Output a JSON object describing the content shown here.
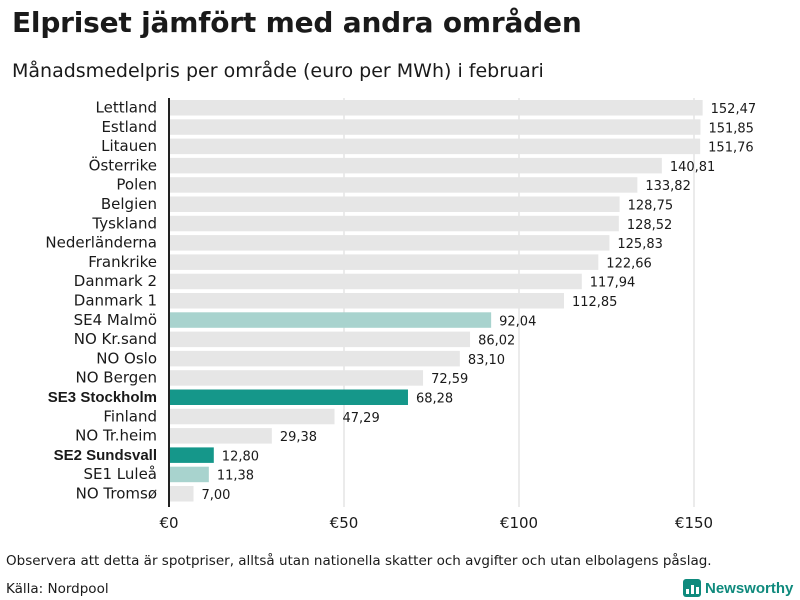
{
  "header": {
    "title": "Elpriset jämfört med andra områden",
    "subtitle": "Månadsmedelpris per område (euro per MWh) i februari"
  },
  "colors": {
    "bar_default": "#e6e6e6",
    "bar_se_light": "#a8d3ce",
    "bar_se_dark": "#15978a",
    "grid": "#d7d7d7",
    "axis": "#222222",
    "brand": "#0f8a7d"
  },
  "chart_data": {
    "type": "bar",
    "orientation": "horizontal",
    "unit": "euro per MWh",
    "categories": [
      "Lettland",
      "Estland",
      "Litauen",
      "Österrike",
      "Polen",
      "Belgien",
      "Tyskland",
      "Nederländerna",
      "Frankrike",
      "Danmark 2",
      "Danmark 1",
      "SE4 Malmö",
      "NO Kr.sand",
      "NO Oslo",
      "NO Bergen",
      "SE3 Stockholm",
      "Finland",
      "NO Tr.heim",
      "SE2 Sundsvall",
      "SE1 Luleå",
      "NO Tromsø"
    ],
    "values": [
      152.47,
      151.85,
      151.76,
      140.81,
      133.82,
      128.75,
      128.52,
      125.83,
      122.66,
      117.94,
      112.85,
      92.04,
      86.02,
      83.1,
      72.59,
      68.28,
      47.29,
      29.38,
      12.8,
      11.38,
      7.0
    ],
    "value_labels": [
      "152,47",
      "151,85",
      "151,76",
      "140,81",
      "133,82",
      "128,75",
      "128,52",
      "125,83",
      "122,66",
      "117,94",
      "112,85",
      "92,04",
      "86,02",
      "83,10",
      "72,59",
      "68,28",
      "47,29",
      "29,38",
      "12,80",
      "11,38",
      "7,00"
    ],
    "styles": [
      "default",
      "default",
      "default",
      "default",
      "default",
      "default",
      "default",
      "default",
      "default",
      "default",
      "default",
      "se_light",
      "default",
      "default",
      "default",
      "se_dark",
      "default",
      "default",
      "se_dark",
      "se_light",
      "default"
    ],
    "emphasized": [
      false,
      false,
      false,
      false,
      false,
      false,
      false,
      false,
      false,
      false,
      false,
      false,
      false,
      false,
      false,
      true,
      false,
      false,
      true,
      false,
      false
    ],
    "x_ticks": [
      0,
      50,
      100,
      150
    ],
    "x_tick_labels": [
      "€0",
      "€50",
      "€100",
      "€150"
    ],
    "xlim": [
      0,
      155
    ],
    "grid": true
  },
  "footer": {
    "note": "Observera att detta är spotpriser, alltså utan nationella skatter och avgifter och utan elbolagens påslag.",
    "source": "Källa: Nordpool",
    "brand": "Newsworthy"
  }
}
